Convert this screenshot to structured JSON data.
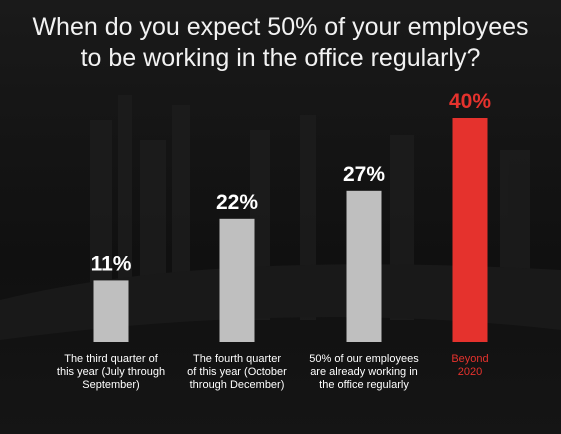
{
  "title": {
    "line1": "When do you expect 50% of your employees",
    "line2": "to be working in the office regularly?"
  },
  "colors": {
    "background": "#101010",
    "bar_default": "#bfbfbf",
    "bar_highlight": "#e5322d",
    "value_label_default": "#ffffff",
    "value_label_highlight": "#e5322d",
    "category_label_default": "#ffffff",
    "category_label_highlight": "#e5322d"
  },
  "chart_data": {
    "type": "bar",
    "title": "When do you expect 50% of your employees to be working in the office regularly?",
    "xlabel": "",
    "ylabel": "",
    "ylim": [
      0,
      40
    ],
    "grid": false,
    "legend": "none",
    "categories": [
      "The third quarter of this year (July through September)",
      "The fourth quarter of this year (October through December)",
      "50% of our employees are already working in the office regularly",
      "Beyond 2020"
    ],
    "category_lines": [
      [
        "The third quarter of",
        "this year (July through",
        "September)"
      ],
      [
        "The fourth quarter",
        "of this year (October",
        "through December)"
      ],
      [
        "50% of our employees",
        "are already working in",
        "the office regularly"
      ],
      [
        "Beyond",
        "2020"
      ]
    ],
    "values": [
      11,
      22,
      27,
      40
    ],
    "value_labels": [
      "11%",
      "22%",
      "27%",
      "40%"
    ],
    "highlight_index": 3
  }
}
